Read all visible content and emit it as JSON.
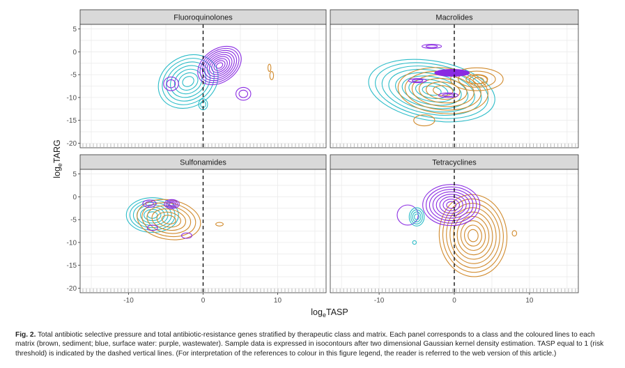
{
  "colors": {
    "sediment": "#d18a2c",
    "surface_water": "#2bbcc8",
    "wastewater": "#8a2be2",
    "strip_bg": "#d9d9d9",
    "panel_bg": "#ffffff",
    "grid": "#ebebeb",
    "axis_text": "#4d4d4d"
  },
  "chart_data": {
    "type": "contour",
    "xlabel": "logeTASP",
    "ylabel": "logeTARG",
    "xlabel_main": "log",
    "xlabel_sub": "e",
    "xlabel_tail": "TASP",
    "ylabel_main": "log",
    "ylabel_sub": "e",
    "ylabel_tail": "TARG",
    "xlim": [
      -16.5,
      16.5
    ],
    "ylim": [
      -21,
      6
    ],
    "xticks": [
      -10,
      0,
      10
    ],
    "yticks": [
      5,
      0,
      -5,
      -10,
      -15,
      -20
    ],
    "threshold_x": 0,
    "series_names": [
      "sediment",
      "surface water",
      "wastewater"
    ],
    "panels": [
      {
        "title": "Fluoroquinolones",
        "blobs": [
          {
            "series": "surface_water",
            "cx": -2.0,
            "cy": -6.5,
            "rx": 4.2,
            "ry": 5.5,
            "rot": -30,
            "levels": 7
          },
          {
            "series": "surface_water",
            "cx": 0.0,
            "cy": -11.5,
            "rx": 0.6,
            "ry": 1.2,
            "rot": 0,
            "levels": 2
          },
          {
            "series": "wastewater",
            "cx": 2.2,
            "cy": -3.0,
            "rx": 3.2,
            "ry": 3.6,
            "rot": -35,
            "levels": 9
          },
          {
            "series": "wastewater",
            "cx": -4.3,
            "cy": -7.0,
            "rx": 1.0,
            "ry": 1.5,
            "rot": 0,
            "levels": 2
          },
          {
            "series": "wastewater",
            "cx": 5.4,
            "cy": -9.2,
            "rx": 1.0,
            "ry": 1.4,
            "rot": 0,
            "levels": 2
          },
          {
            "series": "sediment",
            "cx": 8.9,
            "cy": -3.5,
            "rx": 0.2,
            "ry": 0.8,
            "rot": 0,
            "levels": 1
          },
          {
            "series": "sediment",
            "cx": 9.2,
            "cy": -5.2,
            "rx": 0.25,
            "ry": 0.9,
            "rot": 0,
            "levels": 1
          }
        ]
      },
      {
        "title": "Macrolides",
        "blobs": [
          {
            "series": "surface_water",
            "cx": -3.0,
            "cy": -8.5,
            "rx": 8.5,
            "ry": 6.5,
            "rot": 10,
            "levels": 9
          },
          {
            "series": "sediment",
            "cx": -1.5,
            "cy": -8.5,
            "rx": 6.0,
            "ry": 5.0,
            "rot": 5,
            "levels": 6
          },
          {
            "series": "sediment",
            "cx": -4.0,
            "cy": -15.0,
            "rx": 1.4,
            "ry": 1.2,
            "rot": 0,
            "levels": 1
          },
          {
            "series": "sediment",
            "cx": 3.0,
            "cy": -6.0,
            "rx": 3.5,
            "ry": 2.5,
            "rot": 0,
            "levels": 3
          },
          {
            "series": "sediment",
            "cx": 3.2,
            "cy": -6.3,
            "rx": 1.2,
            "ry": 1.2,
            "rot": 0,
            "levels": 2
          },
          {
            "series": "wastewater",
            "cx": -3.0,
            "cy": 1.2,
            "rx": 1.3,
            "ry": 0.45,
            "rot": 0,
            "levels": 2
          },
          {
            "series": "wastewater",
            "cx": -4.9,
            "cy": -6.3,
            "rx": 1.2,
            "ry": 0.45,
            "rot": 0,
            "levels": 2
          },
          {
            "series": "wastewater",
            "cx": -0.8,
            "cy": -9.5,
            "rx": 1.3,
            "ry": 0.5,
            "rot": 0,
            "levels": 2
          },
          {
            "series": "wastewater",
            "cx": -0.3,
            "cy": -4.6,
            "rx": 2.3,
            "ry": 0.75,
            "rot": 0,
            "levels": 1,
            "fill": true
          }
        ]
      },
      {
        "title": "Sulfonamides",
        "blobs": [
          {
            "series": "surface_water",
            "cx": -6.8,
            "cy": -4.0,
            "rx": 3.5,
            "ry": 3.8,
            "rot": 0,
            "levels": 7
          },
          {
            "series": "sediment",
            "cx": -4.6,
            "cy": -5.0,
            "rx": 4.3,
            "ry": 4.3,
            "rot": 10,
            "levels": 6
          },
          {
            "series": "wastewater",
            "cx": -4.2,
            "cy": -1.6,
            "rx": 1.0,
            "ry": 1.0,
            "rot": 0,
            "levels": 4
          },
          {
            "series": "wastewater",
            "cx": -7.2,
            "cy": -1.5,
            "rx": 0.9,
            "ry": 0.8,
            "rot": 0,
            "levels": 2
          },
          {
            "series": "wastewater",
            "cx": -6.8,
            "cy": -6.8,
            "rx": 0.7,
            "ry": 0.6,
            "rot": 0,
            "levels": 1
          },
          {
            "series": "wastewater",
            "cx": -2.2,
            "cy": -8.5,
            "rx": 0.7,
            "ry": 0.6,
            "rot": 0,
            "levels": 1
          },
          {
            "series": "sediment",
            "cx": 2.2,
            "cy": -6.0,
            "rx": 0.5,
            "ry": 0.4,
            "rot": 0,
            "levels": 1
          }
        ]
      },
      {
        "title": "Tetracyclines",
        "blobs": [
          {
            "series": "sediment",
            "cx": 2.5,
            "cy": -8.5,
            "rx": 4.5,
            "ry": 9.0,
            "rot": -5,
            "levels": 9
          },
          {
            "series": "wastewater",
            "cx": -0.4,
            "cy": -1.8,
            "rx": 3.8,
            "ry": 4.5,
            "rot": 0,
            "levels": 8
          },
          {
            "series": "wastewater",
            "cx": -6.2,
            "cy": -4.0,
            "rx": 1.4,
            "ry": 2.2,
            "rot": 0,
            "levels": 1
          },
          {
            "series": "surface_water",
            "cx": -5.0,
            "cy": -4.4,
            "rx": 1.0,
            "ry": 2.0,
            "rot": 0,
            "levels": 4
          },
          {
            "series": "surface_water",
            "cx": -5.3,
            "cy": -10.0,
            "rx": 0.25,
            "ry": 0.4,
            "rot": 0,
            "levels": 1
          },
          {
            "series": "sediment",
            "cx": 8.0,
            "cy": -8.0,
            "rx": 0.3,
            "ry": 0.6,
            "rot": 0,
            "levels": 1
          }
        ]
      }
    ]
  },
  "caption": {
    "label": "Fig. 2.",
    "text": "Total antibiotic selective pressure and total antibiotic-resistance genes stratified by therapeutic class and matrix. Each panel corresponds to a class and the coloured lines to each matrix (brown, sediment; blue, surface water: purple, wastewater). Sample data is expressed in isocontours after two dimensional Gaussian kernel density estimation. TASP equal to 1 (risk threshold) is indicated by the dashed vertical lines. (For interpretation of the references to colour in this figure legend, the reader is referred to the web version of this article.)"
  }
}
